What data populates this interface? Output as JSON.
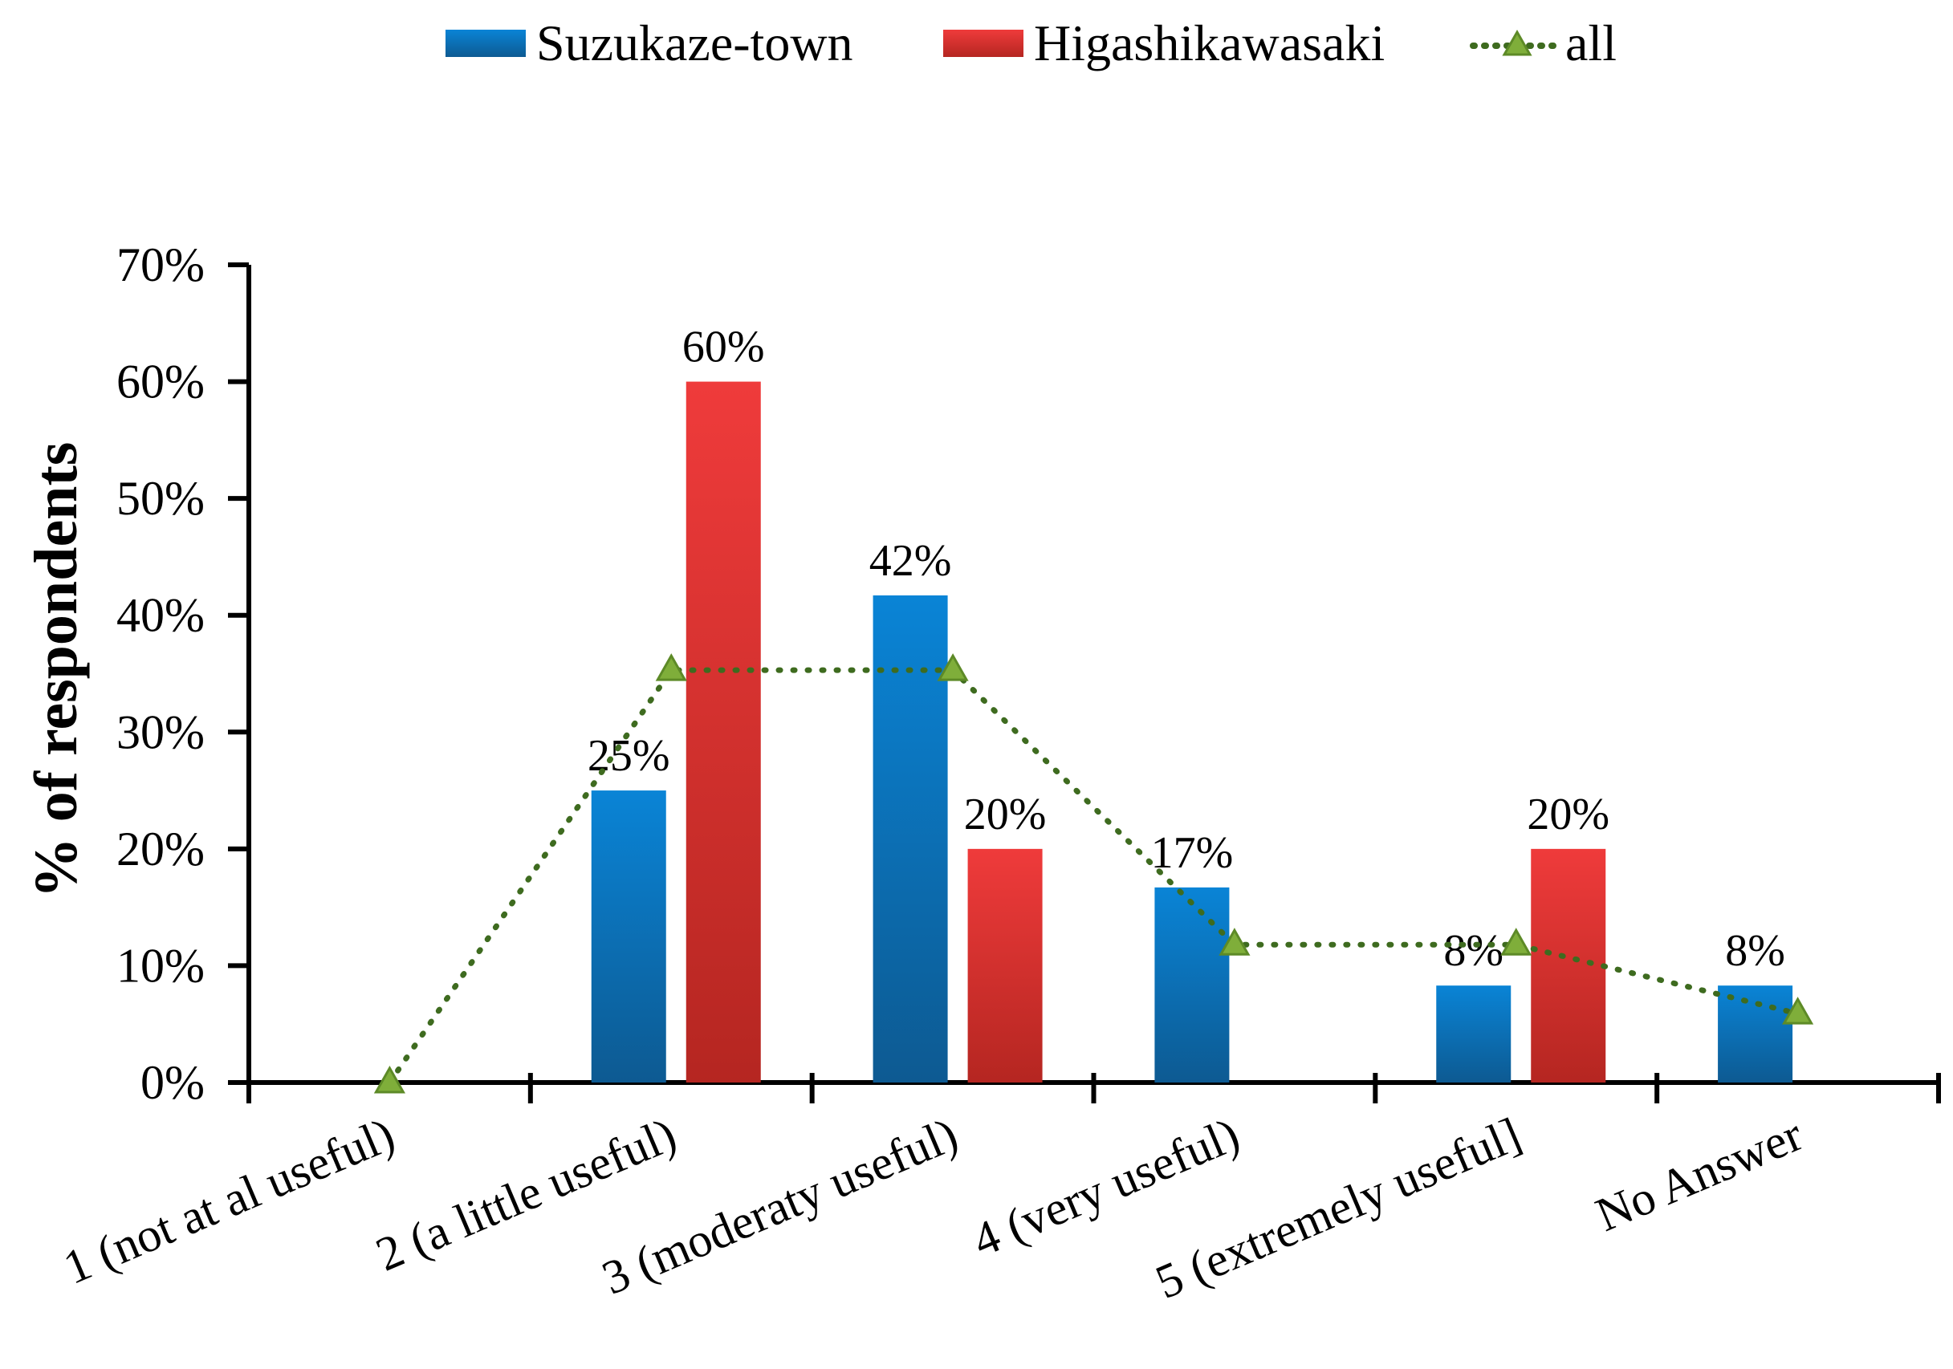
{
  "chart_data": {
    "type": "bar",
    "title": "",
    "xlabel": "",
    "ylabel": "% of respondents",
    "ylim": [
      0,
      70
    ],
    "yticks": [
      0,
      10,
      20,
      30,
      40,
      50,
      60,
      70
    ],
    "ytick_labels": [
      "0%",
      "10%",
      "20%",
      "30%",
      "40%",
      "50%",
      "60%",
      "70%"
    ],
    "categories": [
      "1 (not at al useful)",
      "2 (a little useful)",
      "3 (moderaty useful)",
      "4 (very useful)",
      "5 (extremely useful]",
      "No Answer"
    ],
    "legend_position": "top-center",
    "series": [
      {
        "name": "Suzukaze-town",
        "kind": "bar",
        "color_top": "#0a84d6",
        "color_bottom": "#0d5a92",
        "values": [
          null,
          25,
          41.7,
          16.7,
          8.3,
          8.3
        ],
        "labels": [
          null,
          "25%",
          "42%",
          "17%",
          "8%",
          "8%"
        ]
      },
      {
        "name": "Higashikawasaki",
        "kind": "bar",
        "color_top": "#ef3b3b",
        "color_bottom": "#b52621",
        "values": [
          null,
          60,
          20,
          null,
          20,
          null
        ],
        "labels": [
          null,
          "60%",
          "20%",
          null,
          "20%",
          null
        ]
      },
      {
        "name": "all",
        "kind": "line",
        "color": "#3e6b1f",
        "marker_color": "#7fae3a",
        "values": [
          0,
          35.3,
          35.3,
          11.8,
          11.8,
          5.9
        ]
      }
    ]
  }
}
